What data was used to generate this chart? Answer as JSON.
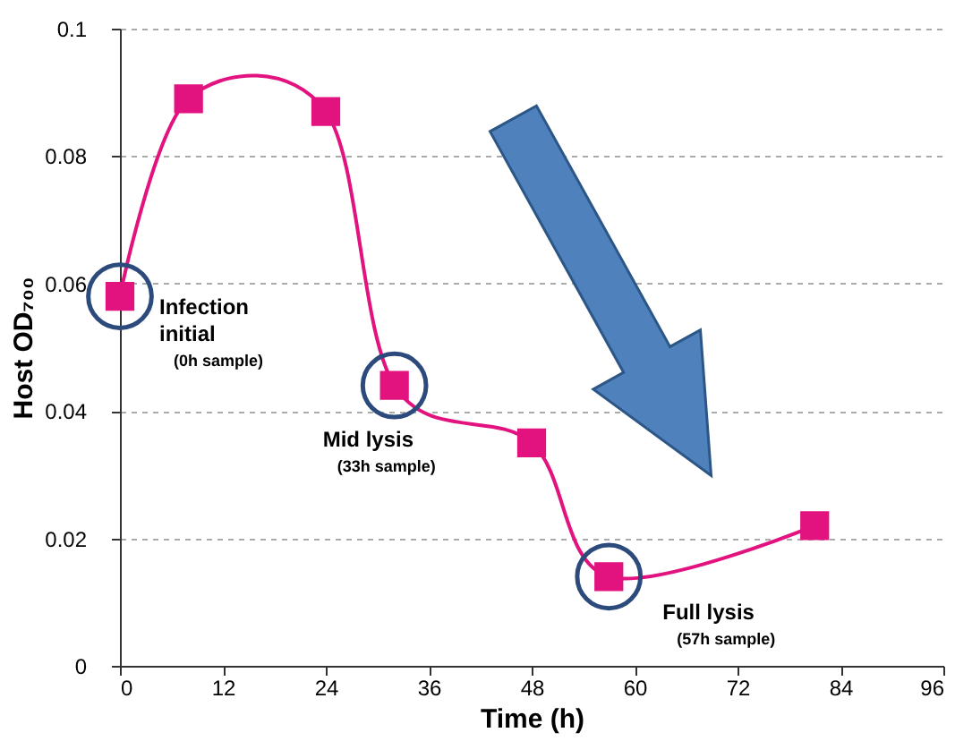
{
  "chart_data": {
    "type": "line",
    "xlabel": "Time (h)",
    "ylabel": "Host OD₇₀₀",
    "x": [
      0,
      8,
      24,
      32,
      48,
      57,
      81
    ],
    "series": [
      {
        "color": "#e2127f",
        "values": [
          0.058,
          0.089,
          0.087,
          0.044,
          0.035,
          0.014,
          0.022
        ]
      }
    ],
    "marker": "square",
    "line_style": "solid",
    "xlim": [
      0,
      96
    ],
    "xticks": [
      0,
      12,
      24,
      36,
      48,
      60,
      72,
      84,
      96
    ],
    "ylim": [
      0,
      0.1
    ],
    "yticks": [
      0,
      0.02,
      0.04,
      0.06,
      0.08,
      0.1
    ],
    "grid": "y",
    "annotations": [
      {
        "text": "Infection\ninitial\n(0h sample)",
        "x": 0,
        "y": 0.058
      },
      {
        "text": "Mid lysis\n(33h sample)",
        "x": 32,
        "y": 0.044
      },
      {
        "text": "Full lysis\n(57h sample)",
        "x": 57,
        "y": 0.014
      }
    ]
  }
}
